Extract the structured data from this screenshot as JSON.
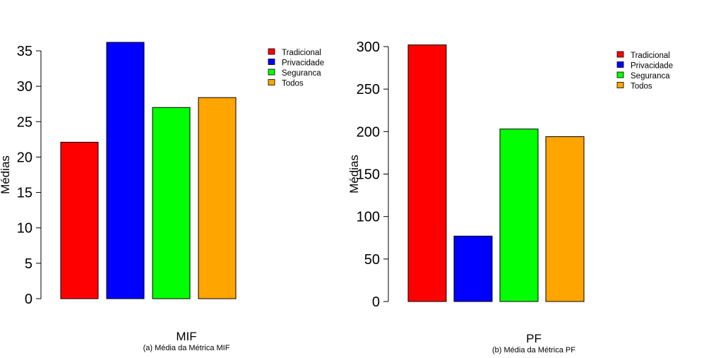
{
  "chart_data": [
    {
      "type": "bar",
      "categories": [
        "Tradicional",
        "Privacidade",
        "Seguranca",
        "Todos"
      ],
      "values": [
        22.1,
        36.2,
        27.0,
        28.4
      ],
      "colors": [
        "#FF0000",
        "#0000FF",
        "#00FF00",
        "#FFA500"
      ],
      "ylabel": "Médias",
      "xlabel": "MIF",
      "caption": "(a) Média da Métrica MIF",
      "ylim": [
        0,
        35
      ],
      "yticks": [
        "0",
        "5",
        "10",
        "15",
        "20",
        "25",
        "30",
        "35"
      ],
      "ytick_values": [
        0,
        5,
        10,
        15,
        20,
        25,
        30,
        35
      ],
      "legend": [
        "Tradicional",
        "Privacidade",
        "Seguranca",
        "Todos"
      ],
      "legend_position": "top-right",
      "grid": false
    },
    {
      "type": "bar",
      "categories": [
        "Tradicional",
        "Privacidade",
        "Seguranca",
        "Todos"
      ],
      "values": [
        302,
        77,
        203,
        194
      ],
      "colors": [
        "#FF0000",
        "#0000FF",
        "#00FF00",
        "#FFA500"
      ],
      "ylabel": "Médias",
      "xlabel": "PF",
      "caption": "(b) Média da Métrica PF",
      "ylim": [
        0,
        300
      ],
      "yticks": [
        "0",
        "50",
        "100",
        "150",
        "200",
        "250",
        "300"
      ],
      "ytick_values": [
        0,
        50,
        100,
        150,
        200,
        250,
        300
      ],
      "ytick_display": [
        "0",
        "50",
        "100",
        "150",
        "200",
        "250",
        "300"
      ],
      "legend": [
        "Tradicional",
        "Privacidade",
        "Seguranca",
        "Todos"
      ],
      "legend_position": "top-right",
      "grid": false
    }
  ]
}
